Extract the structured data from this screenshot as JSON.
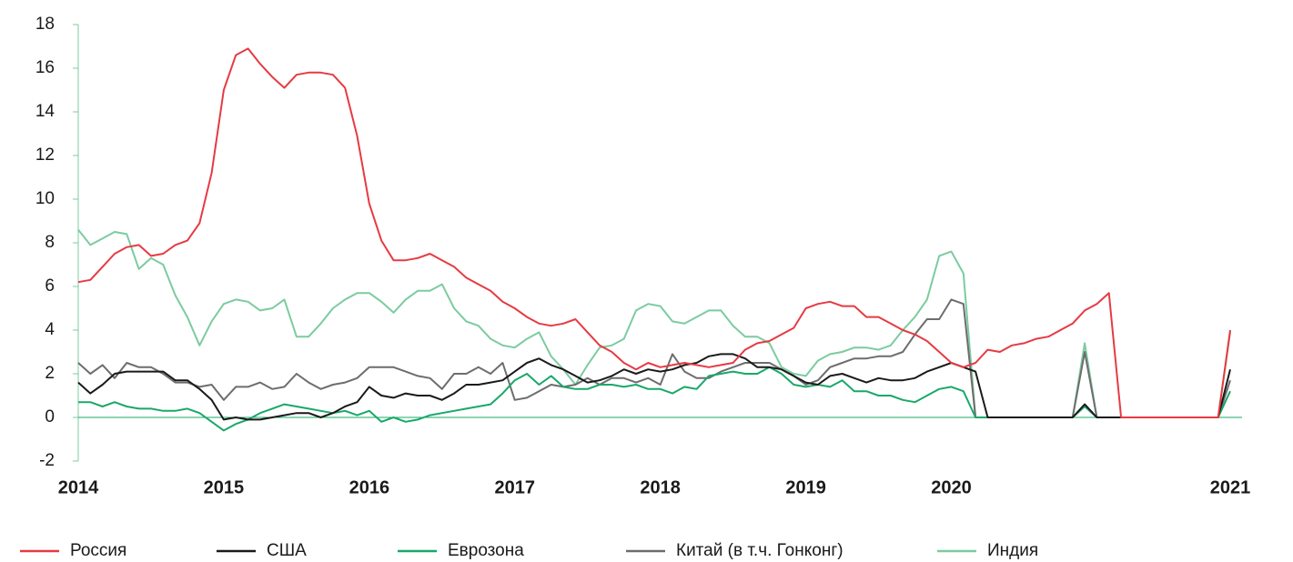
{
  "chart_data": {
    "type": "line",
    "categories": [
      "2014",
      null,
      null,
      null,
      null,
      null,
      null,
      null,
      null,
      null,
      null,
      null,
      "2015",
      null,
      null,
      null,
      null,
      null,
      null,
      null,
      null,
      null,
      null,
      null,
      "2016",
      null,
      null,
      null,
      null,
      null,
      null,
      null,
      null,
      null,
      null,
      null,
      "2017",
      null,
      null,
      null,
      null,
      null,
      null,
      null,
      null,
      null,
      null,
      null,
      "2018",
      null,
      null,
      null,
      null,
      null,
      null,
      null,
      null,
      null,
      null,
      null,
      "2019",
      null,
      null,
      null,
      null,
      null,
      null,
      null,
      null,
      null,
      null,
      null,
      "2020",
      null,
      null,
      null,
      null,
      null,
      null,
      null,
      null,
      null,
      null,
      null,
      null,
      null,
      null,
      null,
      null,
      null,
      null,
      null,
      null,
      null,
      null,
      "2021"
    ],
    "ylim": [
      -2,
      18
    ],
    "yticks": [
      -2,
      0,
      2,
      4,
      6,
      8,
      10,
      12,
      14,
      16,
      18
    ],
    "legend": "bottom",
    "series": [
      {
        "name": "Россия",
        "color": "#e63a43",
        "values": [
          6.2,
          6.3,
          6.9,
          7.5,
          7.8,
          7.9,
          7.4,
          7.5,
          7.9,
          8.1,
          8.9,
          11.2,
          15.0,
          16.6,
          16.9,
          16.2,
          15.6,
          15.1,
          15.7,
          15.8,
          15.8,
          15.7,
          15.1,
          12.9,
          9.8,
          8.1,
          7.2,
          7.2,
          7.3,
          7.5,
          7.2,
          6.9,
          6.4,
          6.1,
          5.8,
          5.3,
          5.0,
          4.6,
          4.3,
          4.2,
          4.3,
          4.5,
          3.9,
          3.3,
          3.0,
          2.5,
          2.2,
          2.5,
          2.3,
          2.4,
          2.5,
          2.4,
          2.3,
          2.4,
          2.5,
          3.1,
          3.4,
          3.5,
          3.8,
          4.1,
          5.0,
          5.2,
          5.3,
          5.1,
          5.1,
          4.6,
          4.6,
          4.3,
          4.0,
          3.8,
          3.5,
          3.0,
          2.5,
          2.3,
          2.5,
          3.1,
          3.0,
          3.3,
          3.4,
          3.6,
          3.7,
          4.0,
          4.3,
          4.9,
          5.2,
          5.7,
          0,
          0,
          0,
          0,
          0,
          0,
          0,
          0,
          0,
          4.0
        ]
      },
      {
        "name": "США",
        "color": "#1a1a1a",
        "values": [
          1.6,
          1.1,
          1.5,
          2.0,
          2.1,
          2.1,
          2.1,
          2.1,
          1.7,
          1.7,
          1.3,
          0.8,
          -0.1,
          0.0,
          -0.1,
          -0.1,
          0.0,
          0.1,
          0.2,
          0.2,
          0.0,
          0.2,
          0.5,
          0.7,
          1.4,
          1.0,
          0.9,
          1.1,
          1.0,
          1.0,
          0.8,
          1.1,
          1.5,
          1.5,
          1.6,
          1.7,
          2.1,
          2.5,
          2.7,
          2.4,
          2.2,
          1.9,
          1.6,
          1.7,
          1.9,
          2.2,
          2.0,
          2.2,
          2.1,
          2.2,
          2.4,
          2.5,
          2.8,
          2.9,
          2.9,
          2.7,
          2.3,
          2.3,
          2.2,
          1.9,
          1.6,
          1.5,
          1.9,
          2.0,
          1.8,
          1.6,
          1.8,
          1.7,
          1.7,
          1.8,
          2.1,
          2.3,
          2.5,
          2.3,
          2.1,
          0,
          0,
          0,
          0,
          0,
          0,
          0,
          0,
          0.6,
          0,
          0,
          0,
          0,
          0,
          0,
          0,
          0,
          0,
          0,
          0,
          2.2
        ]
      },
      {
        "name": "Еврозона",
        "color": "#1aa869",
        "values": [
          0.7,
          0.7,
          0.5,
          0.7,
          0.5,
          0.4,
          0.4,
          0.3,
          0.3,
          0.4,
          0.2,
          -0.2,
          -0.6,
          -0.3,
          -0.1,
          0.2,
          0.4,
          0.6,
          0.5,
          0.4,
          0.3,
          0.2,
          0.3,
          0.1,
          0.3,
          -0.2,
          0.0,
          -0.2,
          -0.1,
          0.1,
          0.2,
          0.3,
          0.4,
          0.5,
          0.6,
          1.1,
          1.7,
          2.0,
          1.5,
          1.9,
          1.4,
          1.3,
          1.3,
          1.5,
          1.5,
          1.4,
          1.5,
          1.3,
          1.3,
          1.1,
          1.4,
          1.3,
          1.9,
          2.0,
          2.1,
          2.0,
          2.0,
          2.3,
          2.0,
          1.5,
          1.4,
          1.5,
          1.4,
          1.7,
          1.2,
          1.2,
          1.0,
          1.0,
          0.8,
          0.7,
          1.0,
          1.3,
          1.4,
          1.2,
          0,
          0,
          0,
          0,
          0,
          0,
          0,
          0,
          0,
          0.5,
          0,
          0,
          0,
          0,
          0,
          0,
          0,
          0,
          0,
          0,
          0,
          1.2
        ]
      },
      {
        "name": "Китай (в т.ч. Гонконг)",
        "color": "#6d6d6d",
        "values": [
          2.5,
          2.0,
          2.4,
          1.8,
          2.5,
          2.3,
          2.3,
          2.0,
          1.6,
          1.6,
          1.4,
          1.5,
          0.8,
          1.4,
          1.4,
          1.6,
          1.3,
          1.4,
          2.0,
          1.6,
          1.3,
          1.5,
          1.6,
          1.8,
          2.3,
          2.3,
          2.3,
          2.1,
          1.9,
          1.8,
          1.3,
          2.0,
          2.0,
          2.3,
          2.0,
          2.5,
          0.8,
          0.9,
          1.2,
          1.5,
          1.4,
          1.5,
          1.8,
          1.5,
          1.8,
          1.8,
          1.6,
          1.8,
          1.5,
          2.9,
          2.1,
          1.8,
          1.8,
          2.1,
          2.3,
          2.5,
          2.5,
          2.5,
          2.2,
          1.9,
          1.5,
          1.7,
          2.3,
          2.5,
          2.7,
          2.7,
          2.8,
          2.8,
          3.0,
          3.8,
          4.5,
          4.5,
          5.4,
          5.2,
          0,
          0,
          0,
          0,
          0,
          0,
          0,
          0,
          0,
          3.0,
          0,
          0,
          0,
          0,
          0,
          0,
          0,
          0,
          0,
          0,
          0,
          1.7
        ]
      },
      {
        "name": "Индия",
        "color": "#7ccba0",
        "values": [
          8.6,
          7.9,
          8.2,
          8.5,
          8.4,
          6.8,
          7.3,
          7.0,
          5.6,
          4.6,
          3.3,
          4.4,
          5.2,
          5.4,
          5.3,
          4.9,
          5.0,
          5.4,
          3.7,
          3.7,
          4.3,
          5.0,
          5.4,
          5.7,
          5.7,
          5.3,
          4.8,
          5.4,
          5.8,
          5.8,
          6.1,
          5.0,
          4.4,
          4.2,
          3.6,
          3.3,
          3.2,
          3.6,
          3.9,
          2.8,
          2.2,
          1.5,
          2.4,
          3.2,
          3.3,
          3.6,
          4.9,
          5.2,
          5.1,
          4.4,
          4.3,
          4.6,
          4.9,
          4.9,
          4.2,
          3.7,
          3.7,
          3.4,
          2.3,
          2.0,
          1.9,
          2.6,
          2.9,
          3.0,
          3.2,
          3.2,
          3.1,
          3.3,
          4.0,
          4.6,
          5.4,
          7.4,
          7.6,
          6.6,
          0,
          0,
          0,
          0,
          0,
          0,
          0,
          0,
          0,
          3.4,
          0,
          0,
          0,
          0,
          0,
          0,
          0,
          0,
          0,
          0,
          0,
          3.9
        ]
      }
    ]
  }
}
